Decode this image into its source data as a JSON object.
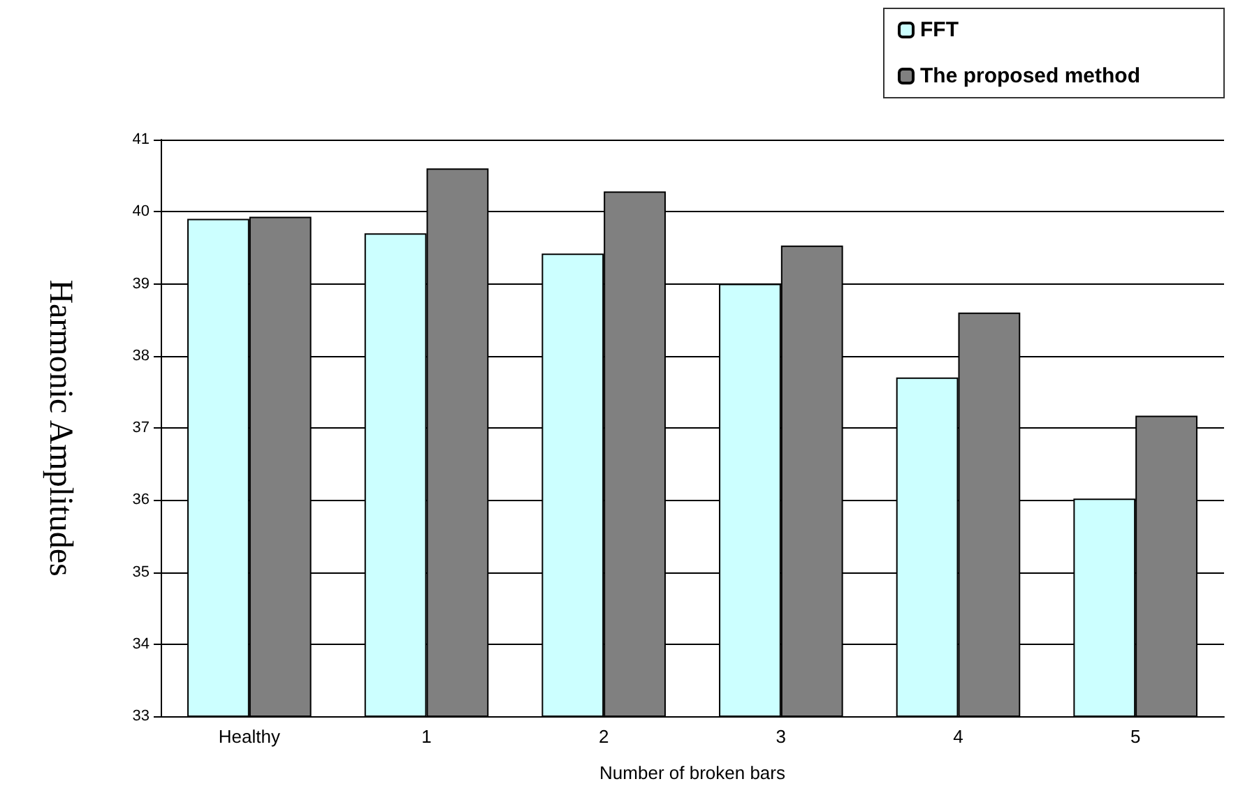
{
  "chart_data": {
    "type": "bar",
    "xlabel": "Number of broken bars",
    "ylabel": "Harmonic Amplitudes",
    "categories": [
      "Healthy",
      "1",
      "2",
      "3",
      "4",
      "5"
    ],
    "series": [
      {
        "name": "FFT",
        "color": "#ccffff",
        "values": [
          39.9,
          39.7,
          39.42,
          39.0,
          37.7,
          36.02
        ]
      },
      {
        "name": "The proposed method",
        "color": "#808080",
        "values": [
          39.93,
          40.6,
          40.28,
          39.53,
          38.6,
          37.17
        ]
      }
    ],
    "ylim": [
      33,
      41
    ],
    "yticks": [
      33,
      34,
      35,
      36,
      37,
      38,
      39,
      40,
      41
    ],
    "grid": "y",
    "legend": "top right"
  }
}
